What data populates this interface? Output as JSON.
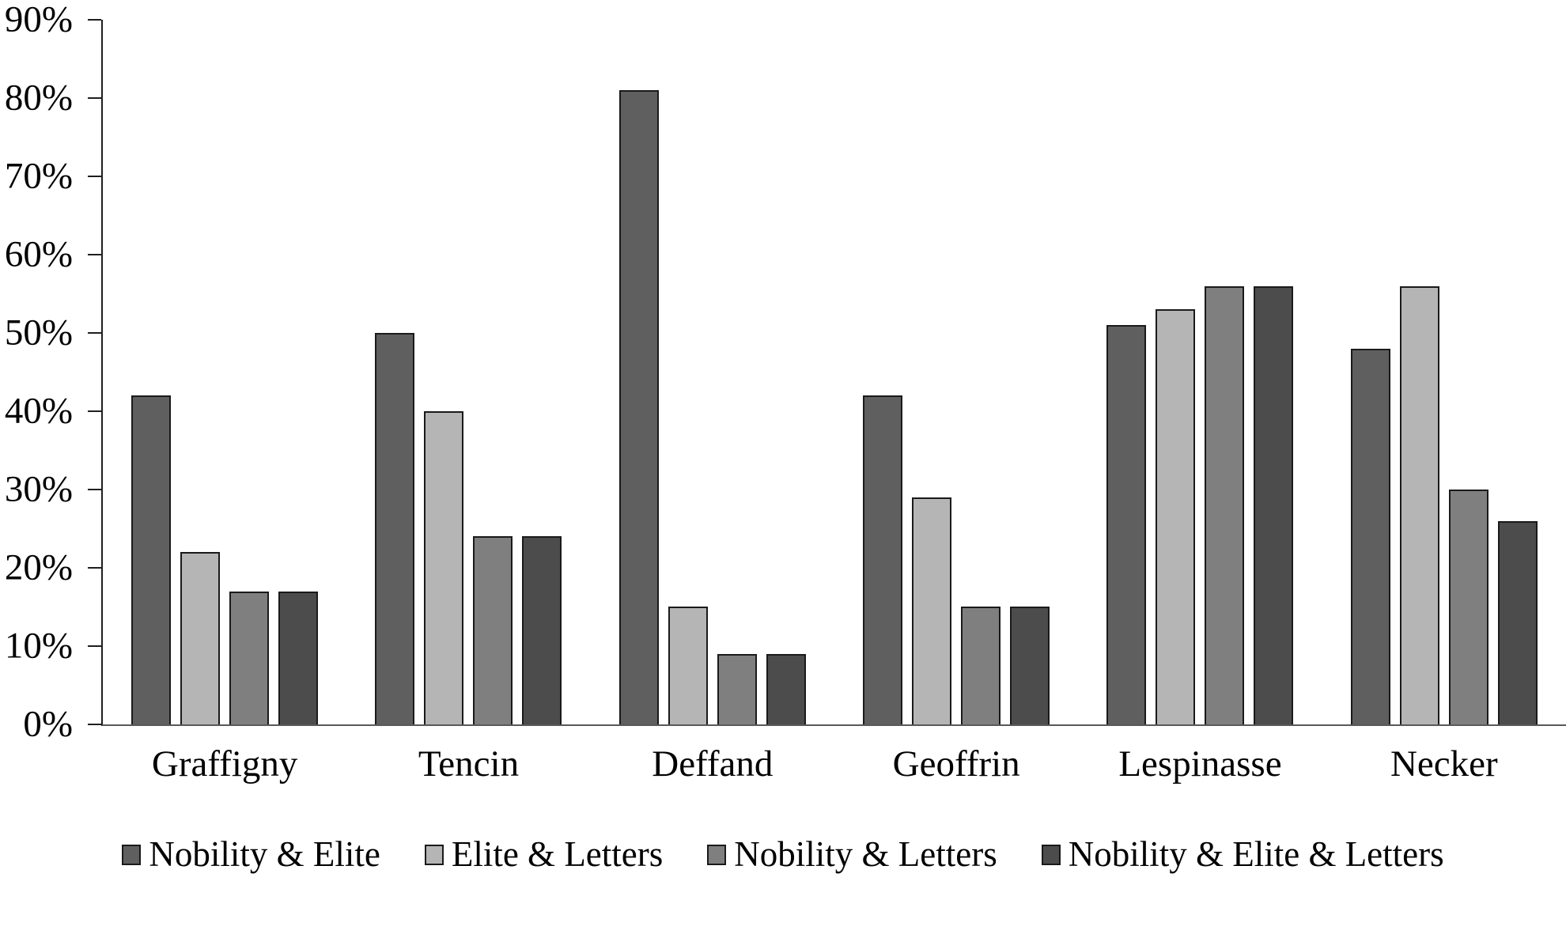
{
  "chart_data": {
    "type": "bar",
    "title": "",
    "xlabel": "",
    "ylabel": "",
    "categories": [
      "Graffigny",
      "Tencin",
      "Deffand",
      "Geoffrin",
      "Lespinasse",
      "Necker"
    ],
    "series": [
      {
        "name": "Nobility & Elite",
        "color": "#5f5f5f",
        "values": [
          42,
          50,
          81,
          42,
          51,
          48
        ]
      },
      {
        "name": "Elite & Letters",
        "color": "#b5b5b5",
        "values": [
          22,
          40,
          15,
          29,
          53,
          56
        ]
      },
      {
        "name": "Nobility & Letters",
        "color": "#7f7f7f",
        "values": [
          17,
          24,
          9,
          15,
          56,
          30
        ]
      },
      {
        "name": "Nobility & Elite & Letters",
        "color": "#4c4c4c",
        "values": [
          17,
          24,
          9,
          15,
          56,
          26
        ]
      }
    ],
    "ylim": [
      0,
      90
    ],
    "y_tick_step": 10,
    "y_tick_labels": [
      "0%",
      "10%",
      "20%",
      "30%",
      "40%",
      "50%",
      "60%",
      "70%",
      "80%",
      "90%"
    ],
    "grid": false,
    "legend_position": "bottom",
    "background": "#ffffff",
    "bar_border_color": "#1a1a1a",
    "axis_color": "#1f1f1f"
  }
}
